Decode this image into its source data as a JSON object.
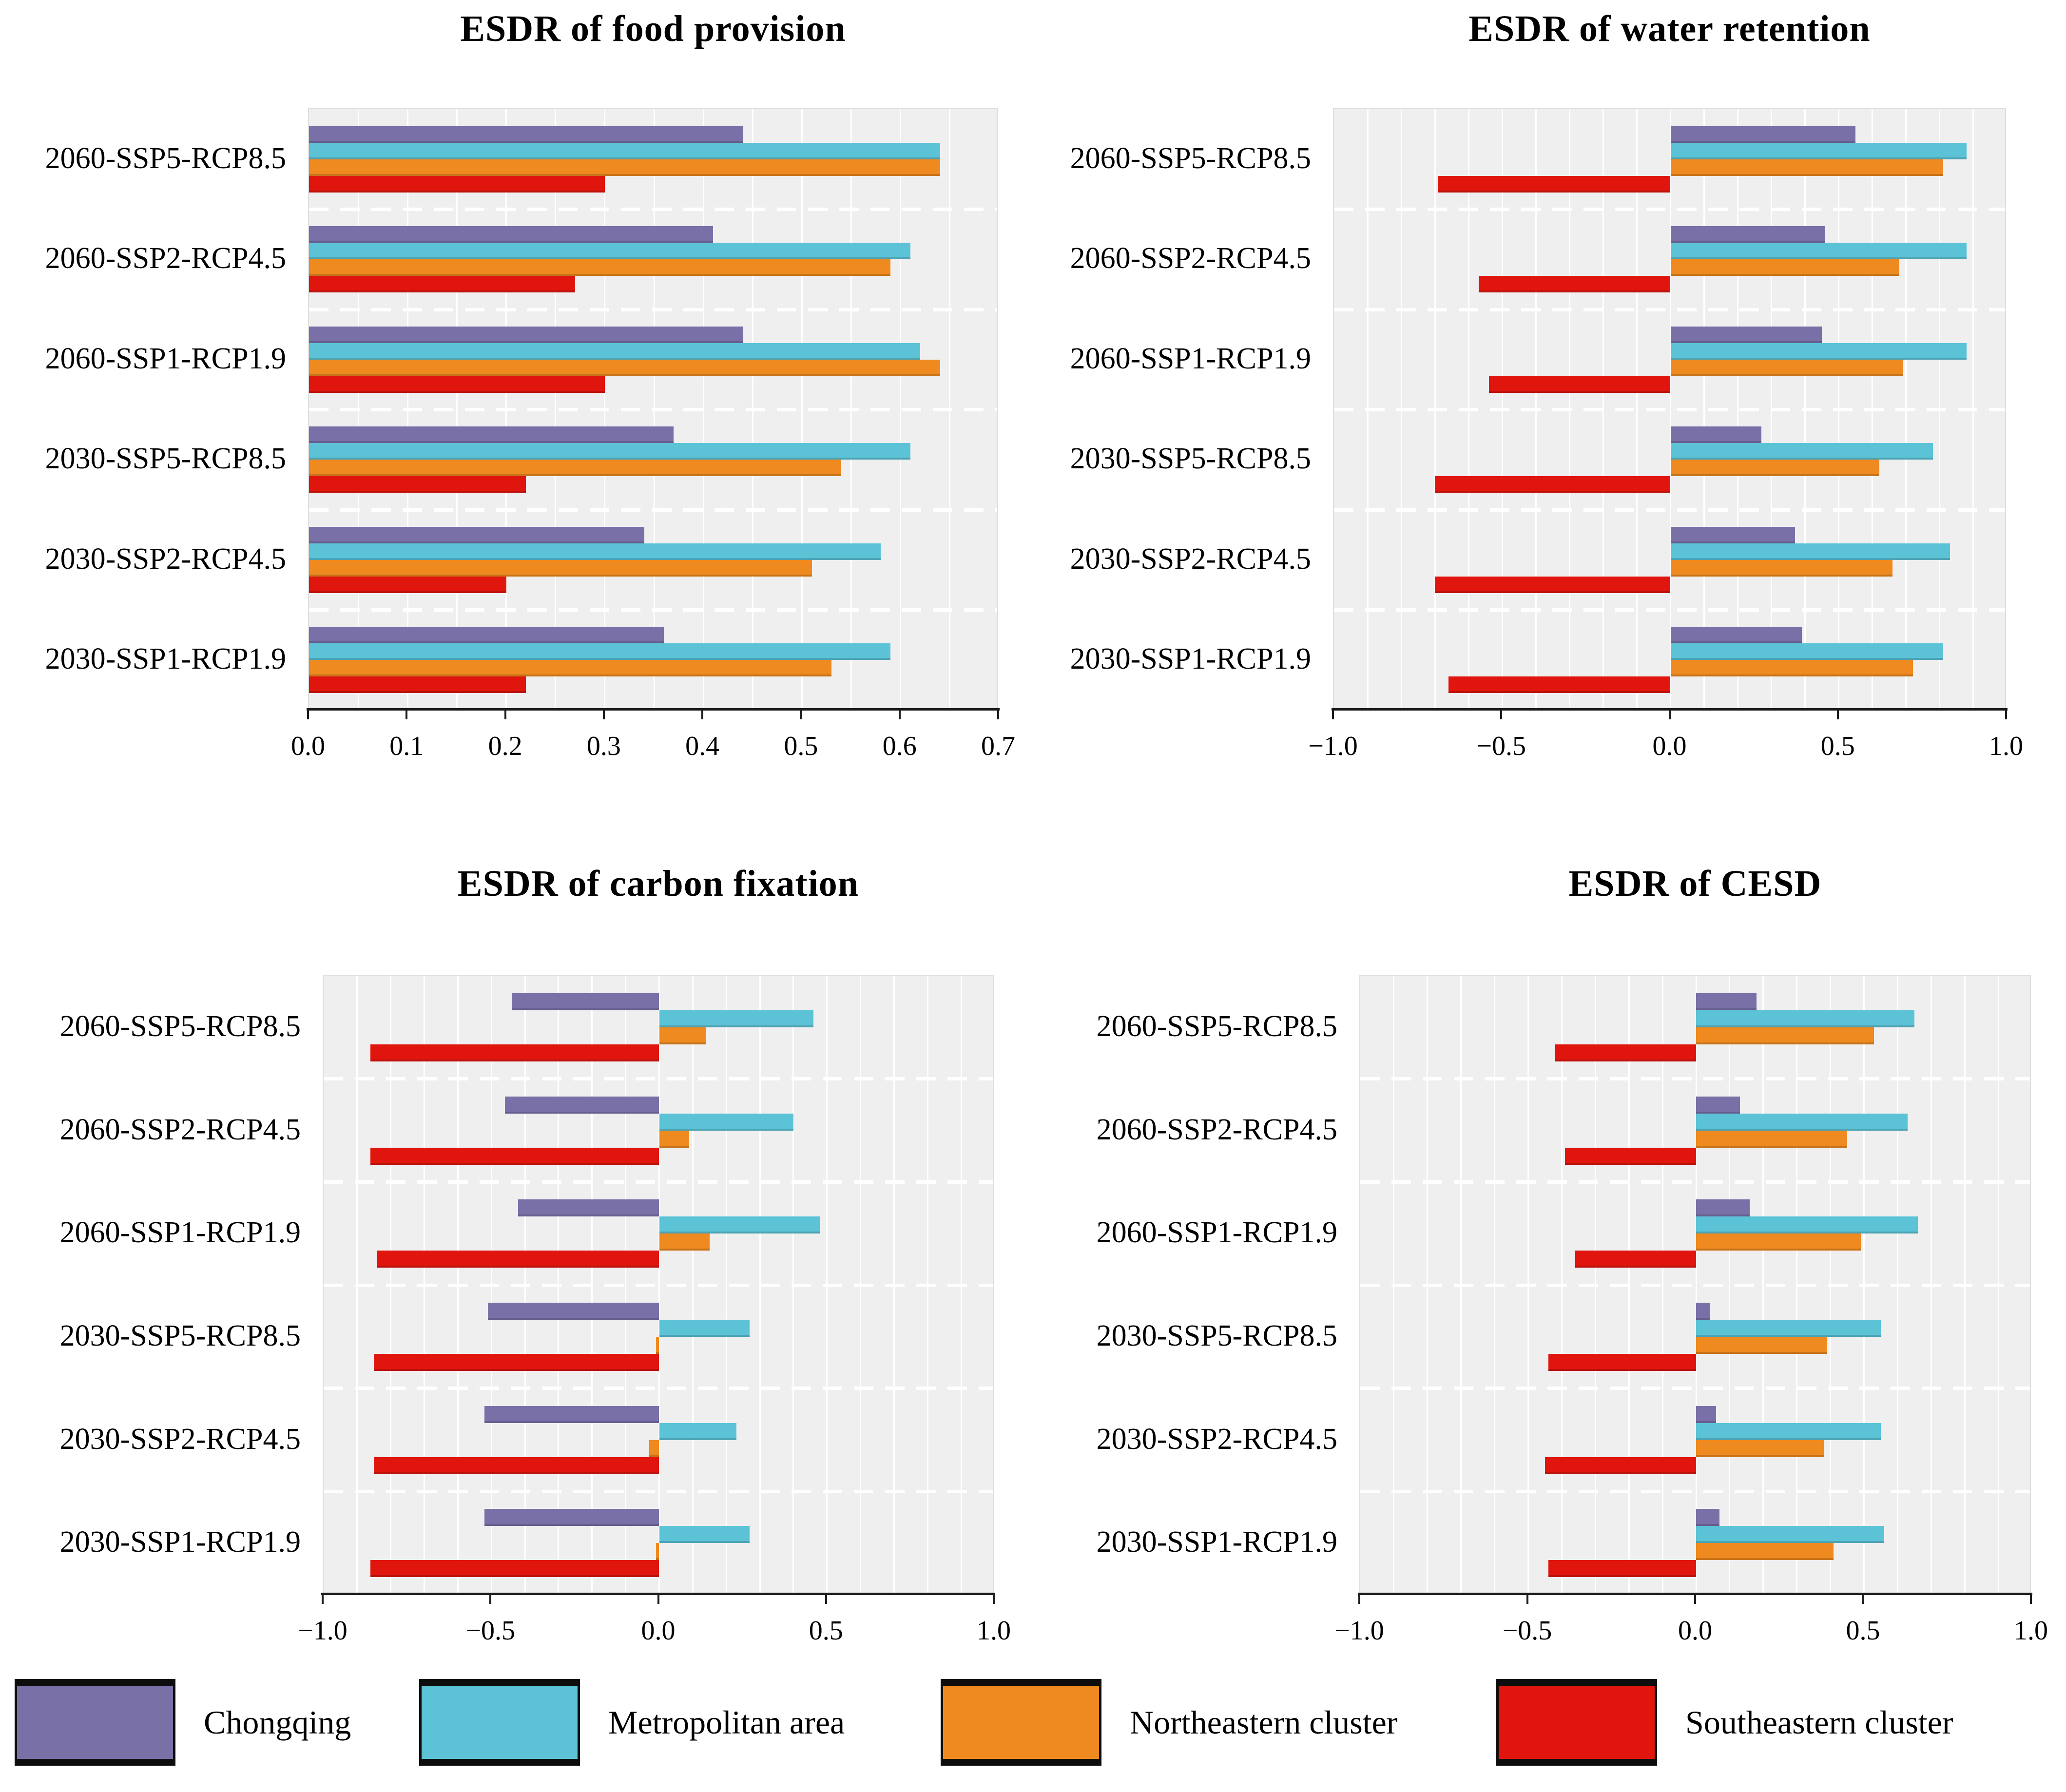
{
  "figure_title": "",
  "legend": {
    "position": "bottom",
    "items": [
      {
        "label": "Chongqing",
        "color": "#7a70a8"
      },
      {
        "label": "Metropolitan area",
        "color": "#5cc3d7"
      },
      {
        "label": "Northeastern cluster",
        "color": "#ee8a1f"
      },
      {
        "label": "Southeastern cluster",
        "color": "#e0160e"
      }
    ]
  },
  "chart_data": [
    {
      "type": "bar",
      "title": "ESDR of food provision",
      "orientation": "horizontal",
      "grid": true,
      "xlabel": "",
      "ylabel": "",
      "xlim": [
        0.0,
        0.7
      ],
      "minor_step": 0.05,
      "ticks": [
        0.0,
        0.1,
        0.2,
        0.3,
        0.4,
        0.5,
        0.6,
        0.7
      ],
      "tick_labels": [
        "0.0",
        "0.1",
        "0.2",
        "0.3",
        "0.4",
        "0.5",
        "0.6",
        "0.7"
      ],
      "categories": [
        "2060-SSP5-RCP8.5",
        "2060-SSP2-RCP4.5",
        "2060-SSP1-RCP1.9",
        "2030-SSP5-RCP8.5",
        "2030-SSP2-RCP4.5",
        "2030-SSP1-RCP1.9"
      ],
      "series": [
        {
          "name": "Chongqing",
          "color": "#7a70a8",
          "values": [
            0.44,
            0.41,
            0.44,
            0.37,
            0.34,
            0.36
          ]
        },
        {
          "name": "Metropolitan area",
          "color": "#5cc3d7",
          "values": [
            0.64,
            0.61,
            0.62,
            0.61,
            0.58,
            0.59
          ]
        },
        {
          "name": "Northeastern cluster",
          "color": "#ee8a1f",
          "values": [
            0.64,
            0.59,
            0.64,
            0.54,
            0.51,
            0.53
          ]
        },
        {
          "name": "Southeastern cluster",
          "color": "#e0160e",
          "values": [
            0.3,
            0.27,
            0.3,
            0.22,
            0.2,
            0.22
          ]
        }
      ]
    },
    {
      "type": "bar",
      "title": "ESDR of water retention",
      "orientation": "horizontal",
      "grid": true,
      "xlabel": "",
      "ylabel": "",
      "xlim": [
        -1.0,
        1.0
      ],
      "minor_step": 0.1,
      "ticks": [
        -1.0,
        -0.5,
        0.0,
        0.5,
        1.0
      ],
      "tick_labels": [
        "−1.0",
        "−0.5",
        "0.0",
        "0.5",
        "1.0"
      ],
      "categories": [
        "2060-SSP5-RCP8.5",
        "2060-SSP2-RCP4.5",
        "2060-SSP1-RCP1.9",
        "2030-SSP5-RCP8.5",
        "2030-SSP2-RCP4.5",
        "2030-SSP1-RCP1.9"
      ],
      "series": [
        {
          "name": "Chongqing",
          "color": "#7a70a8",
          "values": [
            0.55,
            0.46,
            0.45,
            0.27,
            0.37,
            0.39
          ]
        },
        {
          "name": "Metropolitan area",
          "color": "#5cc3d7",
          "values": [
            0.88,
            0.88,
            0.88,
            0.78,
            0.83,
            0.81
          ]
        },
        {
          "name": "Northeastern cluster",
          "color": "#ee8a1f",
          "values": [
            0.81,
            0.68,
            0.69,
            0.62,
            0.66,
            0.72
          ]
        },
        {
          "name": "Southeastern cluster",
          "color": "#e0160e",
          "values": [
            -0.69,
            -0.57,
            -0.54,
            -0.7,
            -0.7,
            -0.66
          ]
        }
      ]
    },
    {
      "type": "bar",
      "title": "ESDR of carbon fixation",
      "orientation": "horizontal",
      "grid": true,
      "xlabel": "",
      "ylabel": "",
      "xlim": [
        -1.0,
        1.0
      ],
      "minor_step": 0.1,
      "ticks": [
        -1.0,
        -0.5,
        0.0,
        0.5,
        1.0
      ],
      "tick_labels": [
        "−1.0",
        "−0.5",
        "0.0",
        "0.5",
        "1.0"
      ],
      "categories": [
        "2060-SSP5-RCP8.5",
        "2060-SSP2-RCP4.5",
        "2060-SSP1-RCP1.9",
        "2030-SSP5-RCP8.5",
        "2030-SSP2-RCP4.5",
        "2030-SSP1-RCP1.9"
      ],
      "series": [
        {
          "name": "Chongqing",
          "color": "#7a70a8",
          "values": [
            -0.44,
            -0.46,
            -0.42,
            -0.51,
            -0.52,
            -0.52
          ]
        },
        {
          "name": "Metropolitan area",
          "color": "#5cc3d7",
          "values": [
            0.46,
            0.4,
            0.48,
            0.27,
            0.23,
            0.27
          ]
        },
        {
          "name": "Northeastern cluster",
          "color": "#ee8a1f",
          "values": [
            0.14,
            0.09,
            0.15,
            -0.01,
            -0.03,
            -0.01
          ]
        },
        {
          "name": "Southeastern cluster",
          "color": "#e0160e",
          "values": [
            -0.86,
            -0.86,
            -0.84,
            -0.85,
            -0.85,
            -0.86
          ]
        }
      ]
    },
    {
      "type": "bar",
      "title": "ESDR of CESD",
      "orientation": "horizontal",
      "grid": true,
      "xlabel": "",
      "ylabel": "",
      "xlim": [
        -1.0,
        1.0
      ],
      "minor_step": 0.1,
      "ticks": [
        -1.0,
        -0.5,
        0.0,
        0.5,
        1.0
      ],
      "tick_labels": [
        "−1.0",
        "−0.5",
        "0.0",
        "0.5",
        "1.0"
      ],
      "categories": [
        "2060-SSP5-RCP8.5",
        "2060-SSP2-RCP4.5",
        "2060-SSP1-RCP1.9",
        "2030-SSP5-RCP8.5",
        "2030-SSP2-RCP4.5",
        "2030-SSP1-RCP1.9"
      ],
      "series": [
        {
          "name": "Chongqing",
          "color": "#7a70a8",
          "values": [
            0.18,
            0.13,
            0.16,
            0.04,
            0.06,
            0.07
          ]
        },
        {
          "name": "Metropolitan area",
          "color": "#5cc3d7",
          "values": [
            0.65,
            0.63,
            0.66,
            0.55,
            0.55,
            0.56
          ]
        },
        {
          "name": "Northeastern cluster",
          "color": "#ee8a1f",
          "values": [
            0.53,
            0.45,
            0.49,
            0.39,
            0.38,
            0.41
          ]
        },
        {
          "name": "Southeastern cluster",
          "color": "#e0160e",
          "values": [
            -0.42,
            -0.39,
            -0.36,
            -0.44,
            -0.45,
            -0.44
          ]
        }
      ]
    }
  ]
}
